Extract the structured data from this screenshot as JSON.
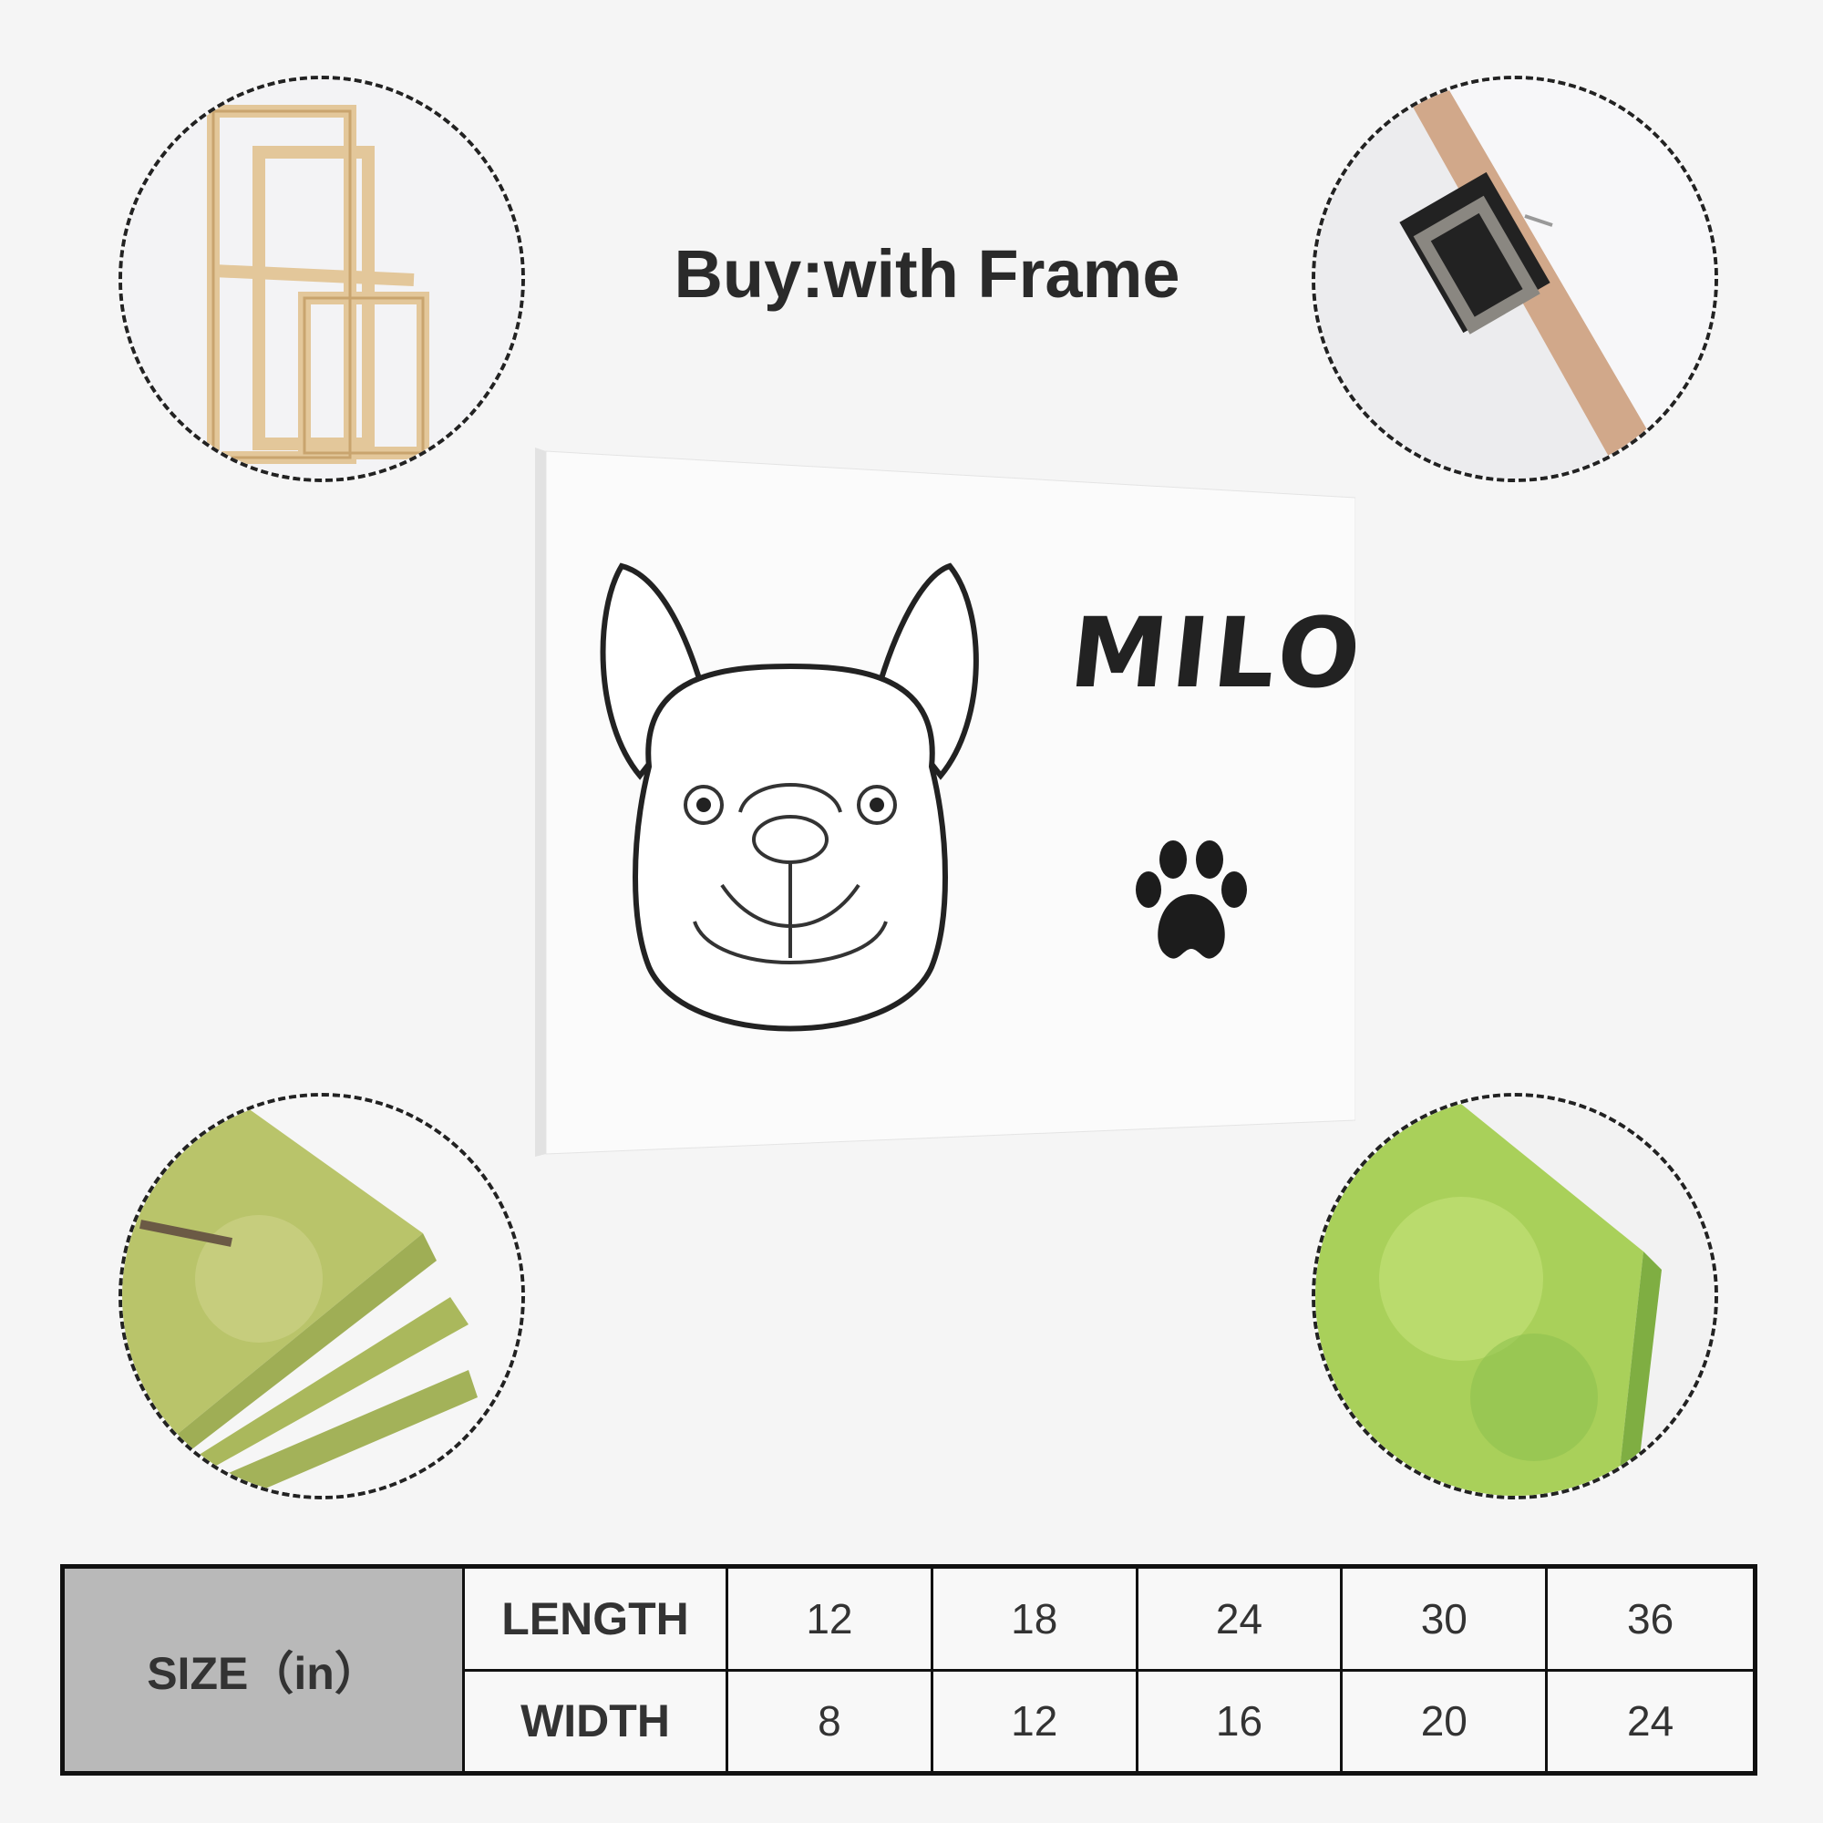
{
  "title": "Buy:with Frame",
  "canvas": {
    "name_text": "MILO",
    "paw_icon": "paw-print-icon"
  },
  "size_table": {
    "header": "SIZE（in）",
    "rows": [
      {
        "label": "LENGTH",
        "values": [
          "12",
          "18",
          "24",
          "30",
          "36"
        ]
      },
      {
        "label": "WIDTH",
        "values": [
          "8",
          "12",
          "16",
          "20",
          "24"
        ]
      }
    ]
  },
  "colors": {
    "background": "#f5f5f5",
    "header_cell": "#b9b9b9",
    "border": "#111111"
  }
}
